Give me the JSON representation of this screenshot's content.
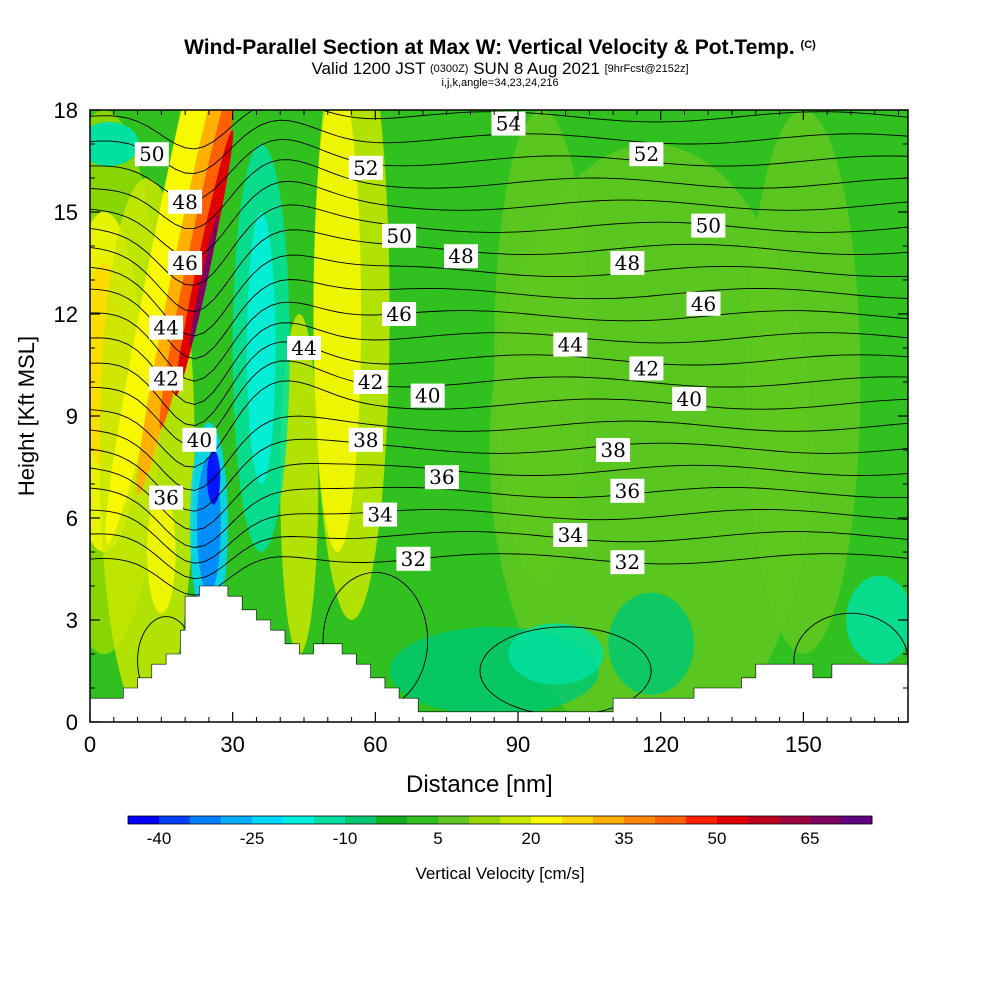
{
  "header": {
    "title": "Wind-Parallel Section at Max W: Vertical Velocity & Pot.Temp.",
    "title_suffix": "(C)",
    "subtitle_valid": "Valid 1200 JST",
    "subtitle_utc": "(0300Z)",
    "subtitle_date": "SUN 8 Aug 2021",
    "subtitle_fcst": "[9hrFcst@2152z]",
    "subtitle2": "i,j,k,angle=34,23,24,216"
  },
  "chart_data": {
    "type": "heatmap",
    "title": "Wind-Parallel Section at Max W: Vertical Velocity & Pot.Temp.",
    "xlabel": "Distance [nm]",
    "ylabel": "Height [Kft MSL]",
    "xlim": [
      0,
      172
    ],
    "ylim": [
      0,
      18
    ],
    "x_ticks": [
      0,
      30,
      60,
      90,
      120,
      150
    ],
    "y_ticks": [
      0,
      3,
      6,
      9,
      12,
      15,
      18
    ],
    "colorbar": {
      "label": "Vertical Velocity [cm/s]",
      "tick_labels": [
        "-40",
        "-25",
        "-10",
        "5",
        "20",
        "35",
        "50",
        "65"
      ],
      "tick_values": [
        -40,
        -25,
        -10,
        5,
        20,
        35,
        50,
        65
      ],
      "colors": [
        "#0000ff",
        "#0040ff",
        "#0080ff",
        "#00b0ff",
        "#00d8ff",
        "#00f0e0",
        "#00e0a0",
        "#00c870",
        "#10b020",
        "#30c020",
        "#60c820",
        "#98d800",
        "#c8e800",
        "#f8f800",
        "#ffd800",
        "#ffb000",
        "#ff8800",
        "#ff6000",
        "#ff2000",
        "#e00000",
        "#c00020",
        "#a00040",
        "#800060",
        "#600080"
      ]
    },
    "theta_contour_labels": [
      {
        "x": 13,
        "y": 16.7,
        "text": "50"
      },
      {
        "x": 20,
        "y": 15.3,
        "text": "48"
      },
      {
        "x": 20,
        "y": 13.5,
        "text": "46"
      },
      {
        "x": 16,
        "y": 11.6,
        "text": "44"
      },
      {
        "x": 16,
        "y": 10.1,
        "text": "42"
      },
      {
        "x": 23,
        "y": 8.3,
        "text": "40"
      },
      {
        "x": 16,
        "y": 6.6,
        "text": "36"
      },
      {
        "x": 58,
        "y": 16.3,
        "text": "52"
      },
      {
        "x": 88,
        "y": 17.6,
        "text": "54"
      },
      {
        "x": 117,
        "y": 16.7,
        "text": "52"
      },
      {
        "x": 130,
        "y": 14.6,
        "text": "50"
      },
      {
        "x": 65,
        "y": 14.3,
        "text": "50"
      },
      {
        "x": 78,
        "y": 13.7,
        "text": "48"
      },
      {
        "x": 113,
        "y": 13.5,
        "text": "48"
      },
      {
        "x": 129,
        "y": 12.3,
        "text": "46"
      },
      {
        "x": 65,
        "y": 12.0,
        "text": "46"
      },
      {
        "x": 45,
        "y": 11.0,
        "text": "44"
      },
      {
        "x": 101,
        "y": 11.1,
        "text": "44"
      },
      {
        "x": 117,
        "y": 10.4,
        "text": "42"
      },
      {
        "x": 59,
        "y": 10.0,
        "text": "42"
      },
      {
        "x": 71,
        "y": 9.6,
        "text": "40"
      },
      {
        "x": 126,
        "y": 9.5,
        "text": "40"
      },
      {
        "x": 58,
        "y": 8.3,
        "text": "38"
      },
      {
        "x": 110,
        "y": 8.0,
        "text": "38"
      },
      {
        "x": 74,
        "y": 7.2,
        "text": "36"
      },
      {
        "x": 113,
        "y": 6.8,
        "text": "36"
      },
      {
        "x": 61,
        "y": 6.1,
        "text": "34"
      },
      {
        "x": 101,
        "y": 5.5,
        "text": "34"
      },
      {
        "x": 68,
        "y": 4.8,
        "text": "32"
      },
      {
        "x": 113,
        "y": 4.7,
        "text": "32"
      }
    ],
    "terrain_profile": [
      [
        0,
        0.7
      ],
      [
        7,
        0.7
      ],
      [
        7,
        1.0
      ],
      [
        10,
        1.0
      ],
      [
        10,
        1.3
      ],
      [
        13,
        1.3
      ],
      [
        13,
        1.7
      ],
      [
        16,
        1.7
      ],
      [
        16,
        2.0
      ],
      [
        19,
        2.0
      ],
      [
        19,
        2.7
      ],
      [
        20,
        2.7
      ],
      [
        20,
        3.7
      ],
      [
        23,
        3.7
      ],
      [
        23,
        4.0
      ],
      [
        29,
        4.0
      ],
      [
        29,
        3.7
      ],
      [
        32,
        3.7
      ],
      [
        32,
        3.3
      ],
      [
        35,
        3.3
      ],
      [
        35,
        3.0
      ],
      [
        38,
        3.0
      ],
      [
        38,
        2.7
      ],
      [
        41,
        2.7
      ],
      [
        41,
        2.3
      ],
      [
        44,
        2.3
      ],
      [
        44,
        2.0
      ],
      [
        47,
        2.0
      ],
      [
        47,
        2.3
      ],
      [
        53,
        2.3
      ],
      [
        53,
        2.0
      ],
      [
        56,
        2.0
      ],
      [
        56,
        1.7
      ],
      [
        59,
        1.7
      ],
      [
        59,
        1.3
      ],
      [
        62,
        1.3
      ],
      [
        62,
        1.0
      ],
      [
        65,
        1.0
      ],
      [
        65,
        0.7
      ],
      [
        69,
        0.7
      ],
      [
        69,
        0.3
      ],
      [
        110,
        0.3
      ],
      [
        110,
        0.7
      ],
      [
        127,
        0.7
      ],
      [
        127,
        1.0
      ],
      [
        137,
        1.0
      ],
      [
        137,
        1.3
      ],
      [
        140,
        1.3
      ],
      [
        140,
        1.7
      ],
      [
        152,
        1.7
      ],
      [
        152,
        1.3
      ],
      [
        156,
        1.3
      ],
      [
        156,
        1.7
      ],
      [
        172,
        1.7
      ]
    ]
  }
}
